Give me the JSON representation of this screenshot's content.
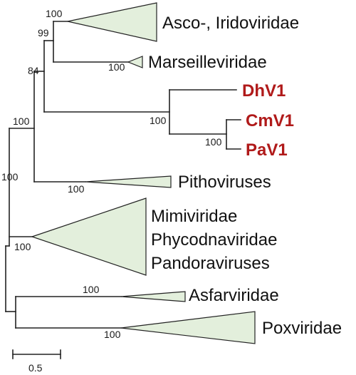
{
  "colors": {
    "branch": "#222222",
    "clade_fill": "#e3efdc",
    "highlight_text": "#b01a1a",
    "text": "#111111"
  },
  "taxa": {
    "asco": "Asco-, Iridoviridae",
    "marseille": "Marseilleviridae",
    "dhv1": "DhV1",
    "cmv1": "CmV1",
    "pav1": "PaV1",
    "pitho": "Pithoviruses",
    "mimi_line1": "Mimiviridae",
    "mimi_line2": "Phycodnaviridae",
    "mimi_line3": "Pandoraviruses",
    "asfar": "Asfarviridae",
    "pox": "Poxviridae"
  },
  "support": {
    "asco": "100",
    "asco_marseille": "99",
    "marseille": "100",
    "upper_group": "84",
    "dhv1_group": "100",
    "cmv1_pav1": "100",
    "with_pitho": "100",
    "pitho": "100",
    "root": "100",
    "mimi": "100",
    "asfar": "100",
    "pox": "100"
  },
  "scale": {
    "label": "0.5",
    "value": 0.5
  }
}
